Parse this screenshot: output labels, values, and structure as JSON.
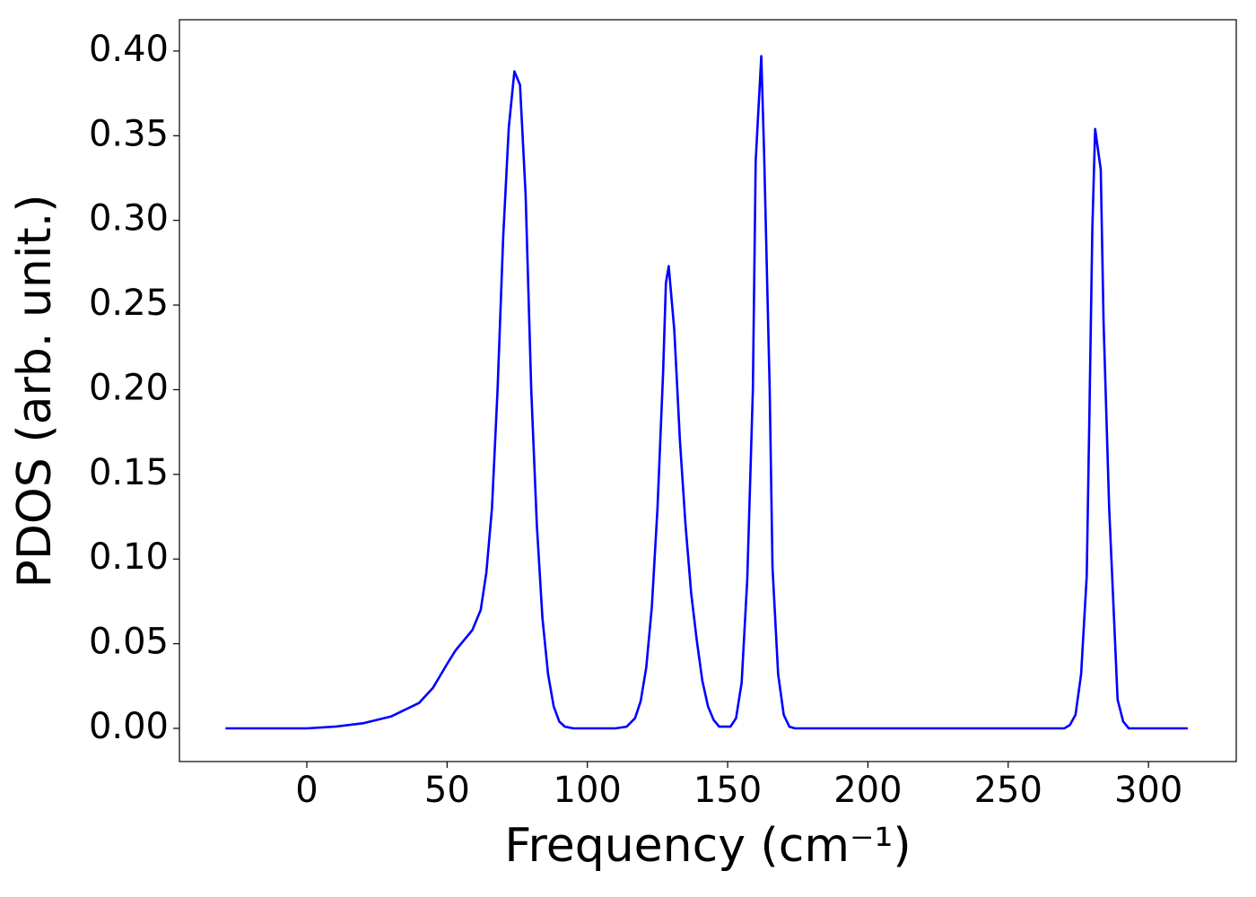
{
  "chart_data": {
    "type": "line",
    "xlabel": "Frequency (cm⁻¹)",
    "ylabel": "PDOS (arb. unit.)",
    "series": [
      {
        "color": "#0000ff",
        "x": [
          -29,
          0,
          10,
          20,
          30,
          40,
          45,
          50,
          53,
          56,
          59,
          62,
          64,
          66,
          68,
          70,
          72,
          74,
          76,
          78,
          80,
          82,
          84,
          86,
          88,
          90,
          92,
          95,
          110,
          114,
          117,
          119,
          121,
          123,
          125,
          127,
          128,
          129,
          131,
          133,
          135,
          137,
          139,
          141,
          143,
          145,
          147,
          151,
          153,
          155,
          157,
          159,
          160,
          162,
          163,
          165,
          166,
          168,
          170,
          172,
          174,
          270,
          272,
          274,
          276,
          278,
          279,
          280,
          281,
          283,
          284,
          286,
          288,
          289,
          291,
          293,
          295,
          314
        ],
        "values": [
          0,
          0,
          0.001,
          0.003,
          0.007,
          0.015,
          0.024,
          0.038,
          0.046,
          0.052,
          0.058,
          0.07,
          0.092,
          0.13,
          0.2,
          0.29,
          0.355,
          0.388,
          0.38,
          0.315,
          0.2,
          0.12,
          0.065,
          0.032,
          0.013,
          0.004,
          0.001,
          0,
          0,
          0.001,
          0.006,
          0.016,
          0.036,
          0.072,
          0.13,
          0.21,
          0.263,
          0.273,
          0.235,
          0.17,
          0.12,
          0.08,
          0.052,
          0.028,
          0.013,
          0.005,
          0.001,
          0.001,
          0.006,
          0.027,
          0.088,
          0.2,
          0.335,
          0.397,
          0.34,
          0.2,
          0.095,
          0.032,
          0.008,
          0.001,
          0,
          0,
          0.002,
          0.008,
          0.032,
          0.09,
          0.19,
          0.295,
          0.354,
          0.33,
          0.24,
          0.13,
          0.055,
          0.017,
          0.004,
          0,
          0,
          0
        ]
      }
    ],
    "xlim": [
      -45.4,
      331.3
    ],
    "ylim": [
      -0.0196,
      0.4185
    ],
    "xticks": [
      0,
      50,
      100,
      150,
      200,
      250,
      300
    ],
    "yticks": [
      {
        "value": 0,
        "label": "0.00"
      },
      {
        "value": 0.05,
        "label": "0.05"
      },
      {
        "value": 0.1,
        "label": "0.10"
      },
      {
        "value": 0.15,
        "label": "0.15"
      },
      {
        "value": 0.2,
        "label": "0.20"
      },
      {
        "value": 0.25,
        "label": "0.25"
      },
      {
        "value": 0.3,
        "label": "0.30"
      },
      {
        "value": 0.35,
        "label": "0.35"
      },
      {
        "value": 0.4,
        "label": "0.40"
      }
    ],
    "grid": false
  }
}
